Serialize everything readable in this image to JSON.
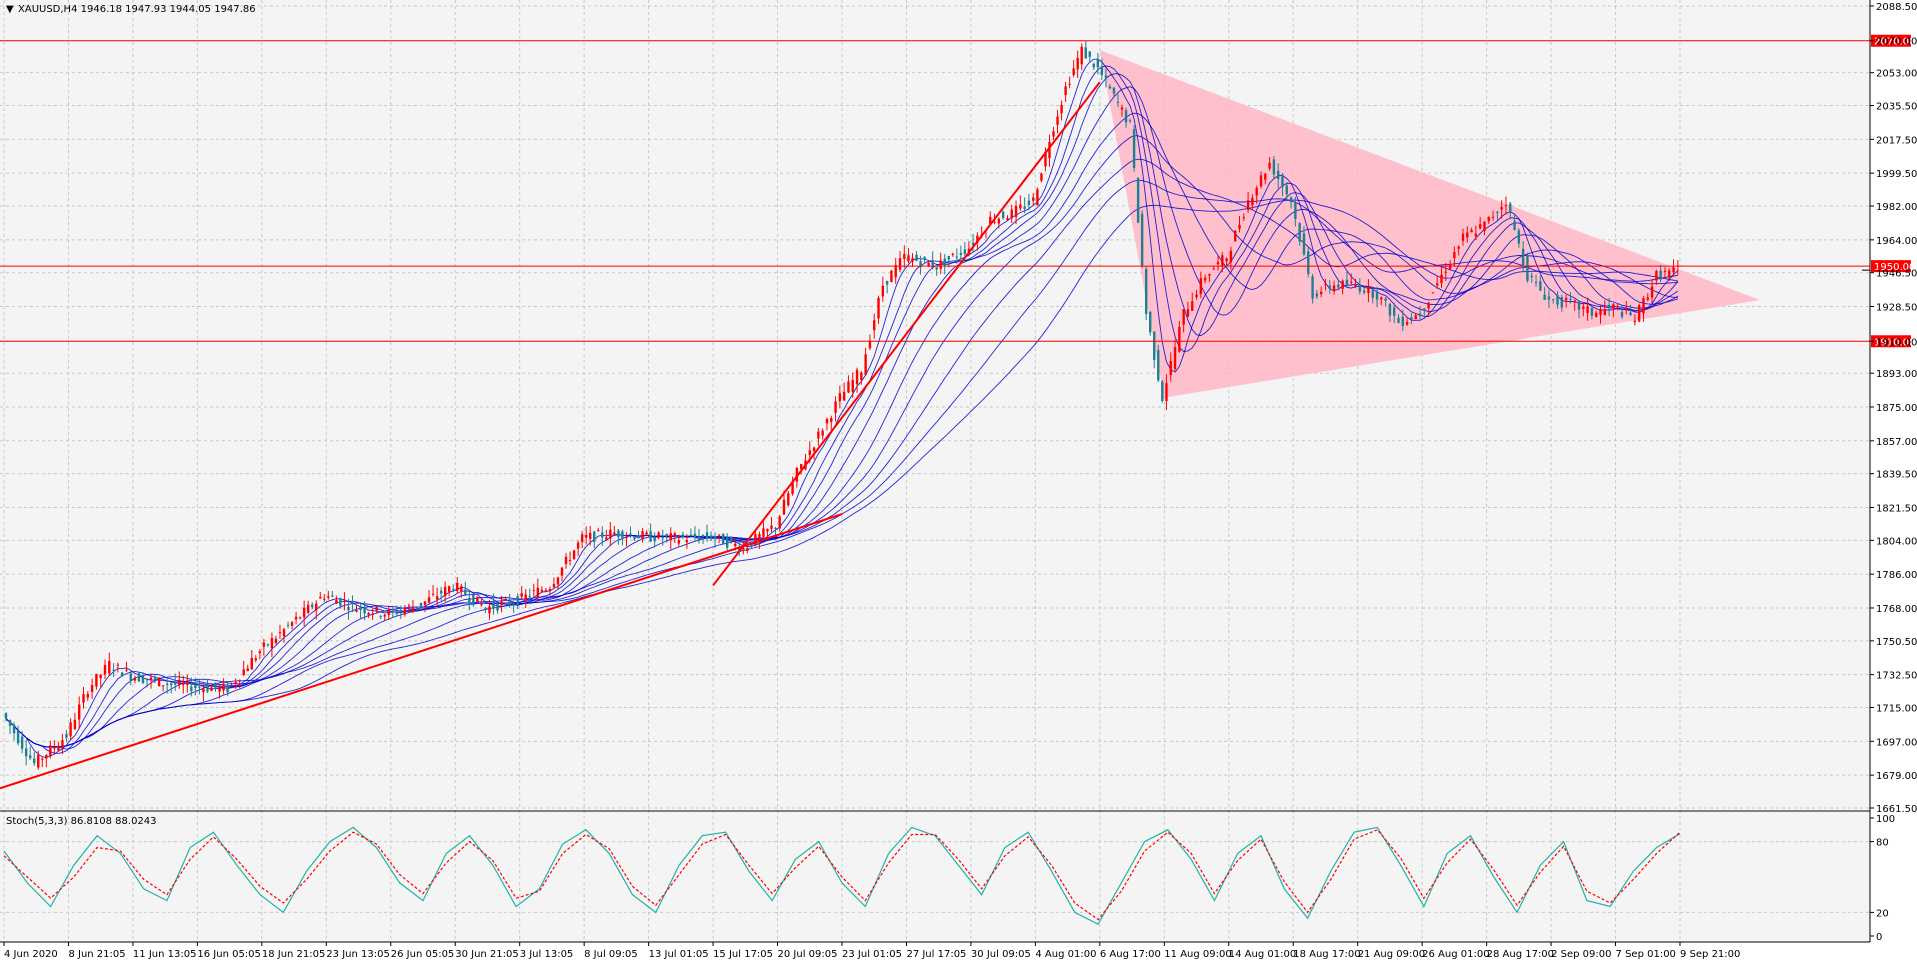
{
  "header": {
    "symbol_line": "XAUUSD,H4  1946.18 1947.93 1944.05 1947.86"
  },
  "indicator": {
    "label": "Stoch(5,3,3) 86.8108 88.0243"
  },
  "colors": {
    "background": "#f4f4f4",
    "grid": "#c8c8c8",
    "bull_candle": "#ff0000",
    "bear_candle": "#1e7f91",
    "ma_ribbon": "#0000cc",
    "trendline": "#ff0000",
    "level_line": "#ff0000",
    "triangle_fill": "#ffb6c6",
    "stoch_main": "#20b2aa",
    "stoch_signal": "#ff0000"
  },
  "chart_data": [
    {
      "type": "candlestick",
      "panel": "price",
      "y_ticks": [
        "2088.50",
        "2070.00",
        "2053.00",
        "2035.50",
        "2017.50",
        "1999.50",
        "1982.00",
        "1964.00",
        "1946.50",
        "1928.50",
        "1910.00",
        "1893.00",
        "1875.00",
        "1857.00",
        "1839.50",
        "1821.50",
        "1804.00",
        "1786.00",
        "1768.00",
        "1750.50",
        "1732.50",
        "1715.00",
        "1697.00",
        "1679.00",
        "1661.50"
      ],
      "ylim": [
        1661.5,
        2088.5
      ],
      "x_ticks": [
        "4 Jun 2020",
        "8 Jun 21:05",
        "11 Jun 13:05",
        "16 Jun 05:05",
        "18 Jun 21:05",
        "23 Jun 13:05",
        "26 Jun 05:05",
        "30 Jun 21:05",
        "3 Jul 13:05",
        "8 Jul 09:05",
        "13 Jul 01:05",
        "15 Jul 17:05",
        "20 Jul 09:05",
        "23 Jul 01:05",
        "27 Jul 17:05",
        "30 Jul 09:05",
        "4 Aug 01:00",
        "6 Aug 17:00",
        "11 Aug 09:00",
        "14 Aug 01:00",
        "18 Aug 17:00",
        "21 Aug 09:00",
        "26 Aug 01:00",
        "28 Aug 17:00",
        "2 Sep 09:00",
        "7 Sep 01:00",
        "9 Sep 21:00"
      ],
      "price_path": [
        {
          "x": "4 Jun 2020",
          "y": 1712
        },
        {
          "x": "5 Jun",
          "y": 1685
        },
        {
          "x": "8 Jun 21:05",
          "y": 1700
        },
        {
          "x": "9 Jun",
          "y": 1725
        },
        {
          "x": "10 Jun",
          "y": 1738
        },
        {
          "x": "11 Jun 13:05",
          "y": 1732
        },
        {
          "x": "12 Jun",
          "y": 1728
        },
        {
          "x": "16 Jun 05:05",
          "y": 1726
        },
        {
          "x": "17 Jun",
          "y": 1725
        },
        {
          "x": "18 Jun 21:05",
          "y": 1745
        },
        {
          "x": "22 Jun",
          "y": 1760
        },
        {
          "x": "23 Jun 13:05",
          "y": 1775
        },
        {
          "x": "24 Jun",
          "y": 1768
        },
        {
          "x": "26 Jun 05:05",
          "y": 1765
        },
        {
          "x": "29 Jun",
          "y": 1770
        },
        {
          "x": "30 Jun 21:05",
          "y": 1780
        },
        {
          "x": "1 Jul",
          "y": 1768
        },
        {
          "x": "3 Jul 13:05",
          "y": 1772
        },
        {
          "x": "6 Jul",
          "y": 1780
        },
        {
          "x": "8 Jul 09:05",
          "y": 1805
        },
        {
          "x": "9 Jul",
          "y": 1808
        },
        {
          "x": "13 Jul 01:05",
          "y": 1806
        },
        {
          "x": "14 Jul",
          "y": 1805
        },
        {
          "x": "15 Jul 17:05",
          "y": 1806
        },
        {
          "x": "17 Jul",
          "y": 1800
        },
        {
          "x": "20 Jul 09:05",
          "y": 1812
        },
        {
          "x": "21 Jul",
          "y": 1840
        },
        {
          "x": "22 Jul",
          "y": 1860
        },
        {
          "x": "23 Jul 01:05",
          "y": 1880
        },
        {
          "x": "24 Jul",
          "y": 1895
        },
        {
          "x": "27 Jul",
          "y": 1940
        },
        {
          "x": "27 Jul 17:05",
          "y": 1955
        },
        {
          "x": "28 Jul",
          "y": 1950
        },
        {
          "x": "30 Jul 09:05",
          "y": 1960
        },
        {
          "x": "31 Jul",
          "y": 1975
        },
        {
          "x": "3 Aug",
          "y": 1978
        },
        {
          "x": "4 Aug 01:00",
          "y": 1985
        },
        {
          "x": "4 Aug",
          "y": 2018
        },
        {
          "x": "5 Aug",
          "y": 2045
        },
        {
          "x": "6 Aug",
          "y": 2065
        },
        {
          "x": "6 Aug 17:00",
          "y": 2055
        },
        {
          "x": "7 Aug",
          "y": 2040
        },
        {
          "x": "10 Aug",
          "y": 2025
        },
        {
          "x": "11 Aug",
          "y": 1925
        },
        {
          "x": "11 Aug 09:00",
          "y": 1880
        },
        {
          "x": "12 Aug",
          "y": 1925
        },
        {
          "x": "13 Aug",
          "y": 1945
        },
        {
          "x": "14 Aug 01:00",
          "y": 1955
        },
        {
          "x": "17 Aug",
          "y": 1985
        },
        {
          "x": "18 Aug",
          "y": 2005
        },
        {
          "x": "18 Aug 17:00",
          "y": 1985
        },
        {
          "x": "19 Aug",
          "y": 1935
        },
        {
          "x": "20 Aug",
          "y": 1940
        },
        {
          "x": "21 Aug 09:00",
          "y": 1940
        },
        {
          "x": "24 Aug",
          "y": 1935
        },
        {
          "x": "25 Aug",
          "y": 1920
        },
        {
          "x": "26 Aug 01:00",
          "y": 1925
        },
        {
          "x": "27 Aug",
          "y": 1945
        },
        {
          "x": "28 Aug",
          "y": 1965
        },
        {
          "x": "28 Aug 17:00",
          "y": 1972
        },
        {
          "x": "1 Sep",
          "y": 1985
        },
        {
          "x": "2 Sep",
          "y": 1945
        },
        {
          "x": "2 Sep 09:00",
          "y": 1932
        },
        {
          "x": "3 Sep",
          "y": 1930
        },
        {
          "x": "4 Sep",
          "y": 1925
        },
        {
          "x": "7 Sep 01:00",
          "y": 1928
        },
        {
          "x": "8 Sep",
          "y": 1922
        },
        {
          "x": "9 Sep",
          "y": 1945
        },
        {
          "x": "9 Sep 21:00",
          "y": 1947.86
        }
      ],
      "horizontal_levels": [
        {
          "value": 2070.0,
          "label": "2070.00"
        },
        {
          "value": 1950.0,
          "label": "1950.00"
        },
        {
          "value": 1910.0,
          "label": "1910.00"
        }
      ],
      "trendlines": [
        {
          "from": {
            "x": "4 Jun 2020",
            "y": 1672
          },
          "to": {
            "x": "23 Jul 01:05",
            "y": 1818
          }
        },
        {
          "from": {
            "x": "15 Jul 17:05",
            "y": 1780
          },
          "to": {
            "x": "6 Aug 17:00",
            "y": 2048
          }
        }
      ],
      "triangle": [
        {
          "x": "6 Aug 17:00",
          "y": 2065
        },
        {
          "x": "11 Aug 09:00",
          "y": 1880
        },
        {
          "x": "11 Sep",
          "y": 1932
        }
      ],
      "moving_average_ribbon": "multiple blue moving averages",
      "last_price": 1947.86,
      "grid": true
    },
    {
      "type": "line",
      "panel": "stochastic",
      "name": "Stoch(5,3,3)",
      "y_ticks": [
        "100",
        "80",
        "20",
        "0"
      ],
      "ylim": [
        0,
        100
      ],
      "series": [
        {
          "name": "%K",
          "values": [
            72,
            45,
            25,
            60,
            85,
            70,
            40,
            30,
            75,
            88,
            60,
            35,
            20,
            55,
            80,
            92,
            75,
            45,
            30,
            70,
            85,
            60,
            25,
            40,
            78,
            90,
            70,
            35,
            20,
            60,
            85,
            88,
            55,
            30,
            65,
            80,
            45,
            25,
            70,
            92,
            85,
            60,
            35,
            75,
            88,
            55,
            20,
            10,
            45,
            80,
            90,
            65,
            30,
            70,
            85,
            40,
            15,
            55,
            88,
            92,
            60,
            25,
            70,
            85,
            50,
            20,
            60,
            80,
            30,
            25,
            55,
            75,
            86.81
          ]
        },
        {
          "name": "%D",
          "values": [
            68,
            50,
            32,
            50,
            75,
            72,
            48,
            35,
            65,
            84,
            65,
            42,
            28,
            48,
            72,
            88,
            78,
            52,
            36,
            62,
            80,
            64,
            32,
            38,
            70,
            86,
            74,
            42,
            26,
            52,
            78,
            86,
            60,
            36,
            58,
            76,
            50,
            30,
            62,
            86,
            86,
            65,
            40,
            68,
            84,
            60,
            28,
            14,
            38,
            72,
            88,
            70,
            36,
            64,
            82,
            46,
            20,
            48,
            82,
            90,
            66,
            32,
            62,
            82,
            56,
            26,
            54,
            76,
            38,
            28,
            48,
            70,
            88.02
          ]
        }
      ],
      "levels": [
        20,
        80
      ]
    }
  ]
}
